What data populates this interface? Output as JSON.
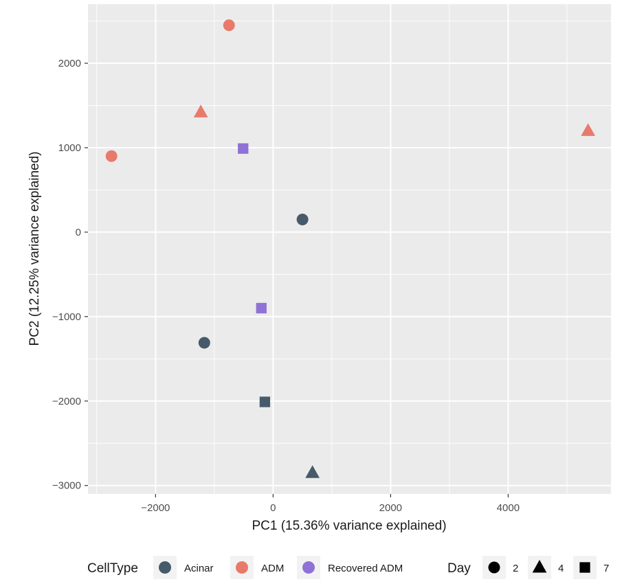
{
  "chart_data": {
    "type": "scatter",
    "xlabel": "PC1 (15.36% variance explained)",
    "ylabel": "PC2 (12.25% variance explained)",
    "xlim": [
      -3150,
      5750
    ],
    "ylim": [
      -3100,
      2700
    ],
    "xticks": [
      -2000,
      0,
      2000,
      4000
    ],
    "xtick_labels": [
      "−2000",
      "0",
      "2000",
      "4000"
    ],
    "yticks": [
      -3000,
      -2000,
      -1000,
      0,
      1000,
      2000
    ],
    "ytick_labels": [
      "−3000",
      "−2000",
      "−1000",
      "0",
      "1000",
      "2000"
    ],
    "grid": true,
    "legend_position": "bottom",
    "colors": {
      "Acinar": "#475a6b",
      "ADM": "#e87a6c",
      "Recovered ADM": "#8f72d6"
    },
    "shapes": {
      "2": "circle",
      "4": "triangle",
      "7": "square"
    },
    "legends": [
      {
        "title": "CellType",
        "key": "celltype",
        "items": [
          "Acinar",
          "ADM",
          "Recovered ADM"
        ]
      },
      {
        "title": "Day",
        "key": "day",
        "items": [
          "2",
          "4",
          "7"
        ]
      }
    ],
    "points": [
      {
        "x": -2750,
        "y": 900,
        "celltype": "ADM",
        "day": "2"
      },
      {
        "x": -750,
        "y": 2450,
        "celltype": "ADM",
        "day": "2"
      },
      {
        "x": -1230,
        "y": 1420,
        "celltype": "ADM",
        "day": "4"
      },
      {
        "x": 5360,
        "y": 1200,
        "celltype": "ADM",
        "day": "4"
      },
      {
        "x": -510,
        "y": 990,
        "celltype": "Recovered ADM",
        "day": "7"
      },
      {
        "x": -200,
        "y": -900,
        "celltype": "Recovered ADM",
        "day": "7"
      },
      {
        "x": 500,
        "y": 150,
        "celltype": "Acinar",
        "day": "2"
      },
      {
        "x": -1170,
        "y": -1310,
        "celltype": "Acinar",
        "day": "2"
      },
      {
        "x": -140,
        "y": -2010,
        "celltype": "Acinar",
        "day": "7"
      },
      {
        "x": 670,
        "y": -2850,
        "celltype": "Acinar",
        "day": "4"
      }
    ]
  }
}
